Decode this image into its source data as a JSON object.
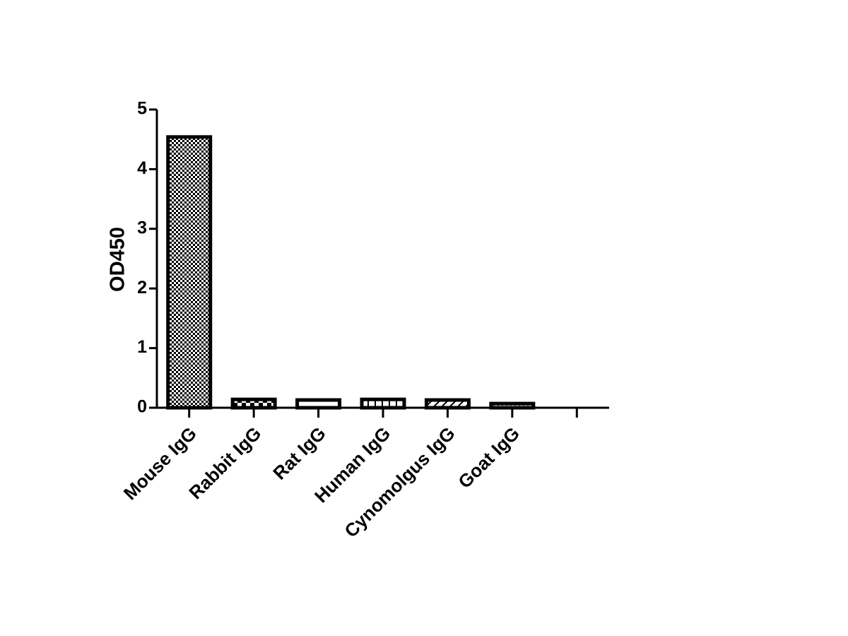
{
  "chart_data": {
    "type": "bar",
    "y_label": "OD450",
    "categories": [
      "Mouse IgG",
      "Rabbit IgG",
      "Rat IgG",
      "Human IgG",
      "Cynomolgus IgG",
      "Goat IgG",
      null
    ],
    "values": [
      4.54,
      0.14,
      0.13,
      0.14,
      0.13,
      0.07,
      null
    ],
    "patterns": [
      "fine-checker",
      "checker",
      "plain",
      "vertical-lines",
      "diagonal-lines",
      "dots",
      null
    ],
    "color": "#000000",
    "ylim": [
      0,
      5
    ],
    "yticks": [
      0,
      1,
      2,
      3,
      4,
      5
    ],
    "grid": false
  }
}
